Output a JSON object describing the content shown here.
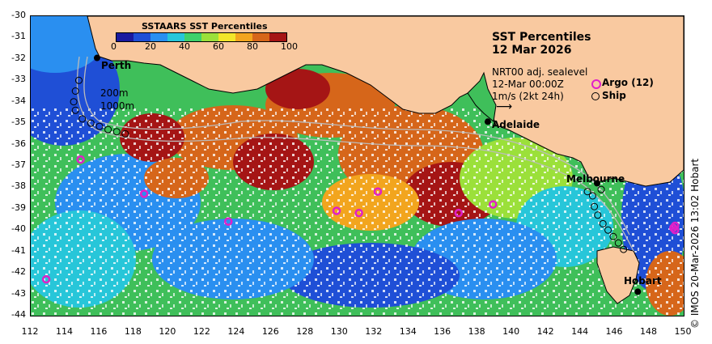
{
  "legend": {
    "title": "SSTAARS SST Percentiles",
    "ticks": [
      "0",
      "20",
      "40",
      "60",
      "80",
      "100"
    ],
    "colors": [
      "#1a1aa0",
      "#1f4fd6",
      "#2a8ff0",
      "#27c6d9",
      "#3ed16b",
      "#9be03a",
      "#f2e62a",
      "#f2a51e",
      "#d6661a",
      "#a51515"
    ]
  },
  "header": {
    "title": "SST Percentiles",
    "date": "12 Mar 2026",
    "product": "NRT00 adj. sealevel",
    "time": "12-Mar 00:00Z",
    "scale": "1m/s (2kt 24h)",
    "argo_label": "Argo (12)",
    "ship_label": "Ship"
  },
  "bathymetry": {
    "line1": "200m",
    "line2": "1000m"
  },
  "cities": [
    {
      "name": "Perth",
      "lon": 115.86,
      "lat": -31.95
    },
    {
      "name": "Adelaide",
      "lon": 138.6,
      "lat": -34.93
    },
    {
      "name": "Melbourne",
      "lon": 144.96,
      "lat": -37.81
    },
    {
      "name": "Hobart",
      "lon": 147.33,
      "lat": -42.88
    }
  ],
  "axes": {
    "x_ticks": [
      "112",
      "114",
      "116",
      "118",
      "120",
      "122",
      "124",
      "126",
      "128",
      "130",
      "132",
      "134",
      "136",
      "138",
      "140",
      "142",
      "144",
      "146",
      "148",
      "150"
    ],
    "y_ticks": [
      "-30",
      "-31",
      "-32",
      "-33",
      "-34",
      "-35",
      "-36",
      "-37",
      "-38",
      "-39",
      "-40",
      "-41",
      "-42",
      "-43",
      "-44"
    ],
    "lon_range": [
      112,
      150
    ],
    "lat_range": [
      -44,
      -30
    ]
  },
  "argo_floats": [
    {
      "lon": 114.9,
      "lat": -36.7
    },
    {
      "lon": 118.6,
      "lat": -38.3
    },
    {
      "lon": 123.5,
      "lat": -39.6
    },
    {
      "lon": 129.8,
      "lat": -39.1
    },
    {
      "lon": 131.1,
      "lat": -39.2
    },
    {
      "lon": 132.2,
      "lat": -38.2
    },
    {
      "lon": 136.9,
      "lat": -39.2
    },
    {
      "lon": 138.9,
      "lat": -38.8
    },
    {
      "lon": 149.5,
      "lat": -39.8
    },
    {
      "lon": 149.5,
      "lat": -40.0
    },
    {
      "lon": 112.9,
      "lat": -42.3
    },
    {
      "lon": 149.4,
      "lat": -39.9
    }
  ],
  "ship_tracks": [
    {
      "lon": 114.8,
      "lat": -33.0
    },
    {
      "lon": 114.6,
      "lat": -33.5
    },
    {
      "lon": 114.5,
      "lat": -34.0
    },
    {
      "lon": 114.6,
      "lat": -34.4
    },
    {
      "lon": 115.0,
      "lat": -34.8
    },
    {
      "lon": 115.5,
      "lat": -35.0
    },
    {
      "lon": 116.0,
      "lat": -35.15
    },
    {
      "lon": 116.5,
      "lat": -35.3
    },
    {
      "lon": 117.0,
      "lat": -35.4
    },
    {
      "lon": 117.5,
      "lat": -35.5
    },
    {
      "lon": 144.4,
      "lat": -38.2
    },
    {
      "lon": 144.7,
      "lat": -38.4
    },
    {
      "lon": 144.8,
      "lat": -38.9
    },
    {
      "lon": 145.0,
      "lat": -39.3
    },
    {
      "lon": 145.3,
      "lat": -39.7
    },
    {
      "lon": 145.6,
      "lat": -40.0
    },
    {
      "lon": 145.9,
      "lat": -40.3
    },
    {
      "lon": 146.2,
      "lat": -40.6
    },
    {
      "lon": 146.5,
      "lat": -40.9
    },
    {
      "lon": 145.2,
      "lat": -38.1
    }
  ],
  "credit": "© IMOS 20-Mar-2026 13:02 Hobart"
}
